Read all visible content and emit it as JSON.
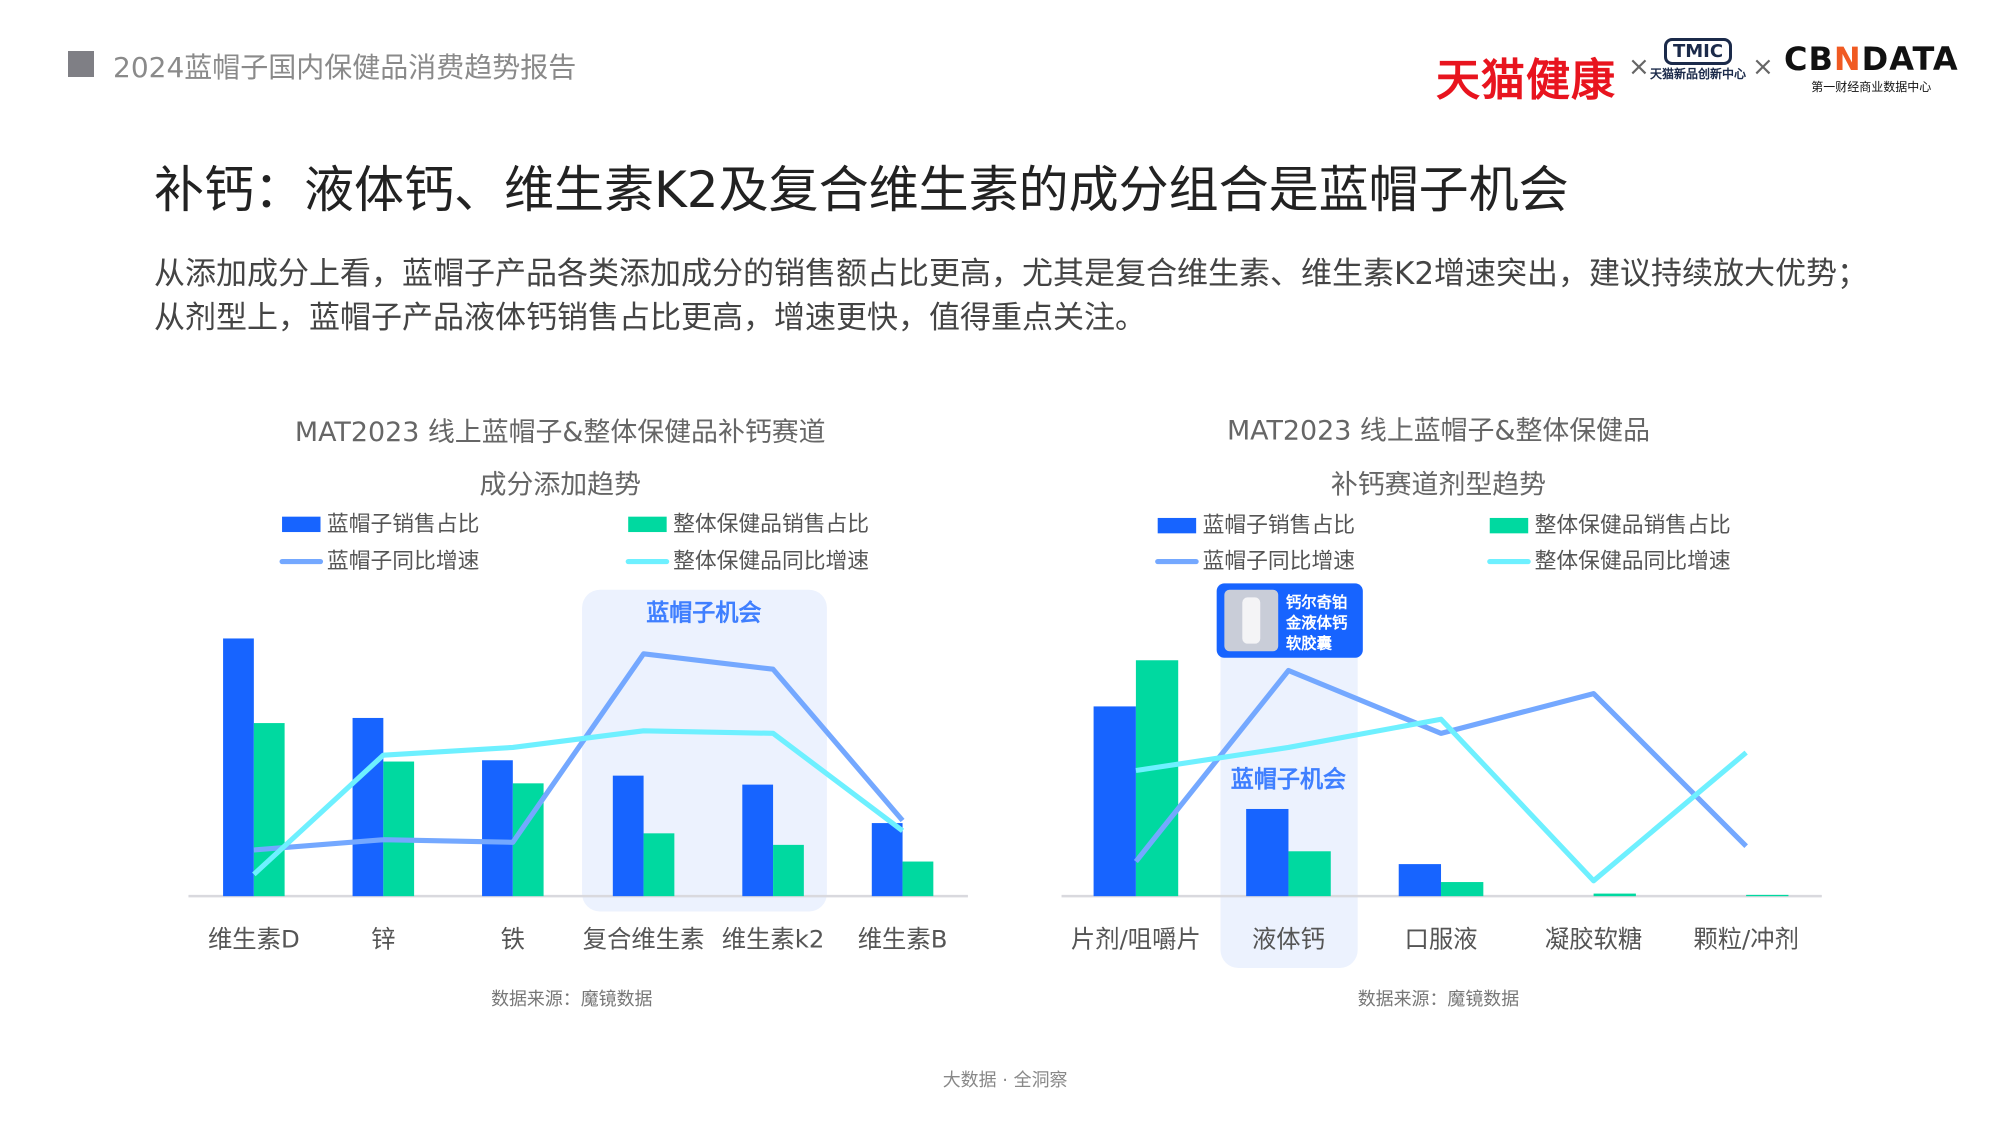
{
  "header": {
    "report_title": "2024蓝帽子国内保健品消费趋势报告"
  },
  "logos": {
    "tmall_health": "天猫健康",
    "cross": "×",
    "tmic": "TMIC",
    "tmic_sub": "天猫新品创新中心",
    "cbndata_a": "CB",
    "cbndata_n": "N",
    "cbndata_b": "DATA",
    "cbndata_sub": "第一财经商业数据中心"
  },
  "title": "补钙：液体钙、维生素K2及复合维生素的成分组合是蓝帽子机会",
  "description": "从添加成分上看，蓝帽子产品各类添加成分的销售额占比更高，尤其是复合维生素、维生素K2增速突出，建议持续放大优势；从剂型上，蓝帽子产品液体钙销售占比更高，增速更快，值得重点关注。",
  "footer": "大数据 · 全洞察",
  "colors": {
    "blue_bar": "#1764ff",
    "green_bar": "#00d9a0",
    "blue_line": "#74a8ff",
    "cyan_line": "#6ef0ff",
    "highlight": "#ecf2fe"
  },
  "chart_data": [
    {
      "type": "bar",
      "title_line1": "MAT2023 线上蓝帽子&整体保健品补钙赛道",
      "title_line2": "成分添加趋势",
      "categories": [
        "维生素D",
        "锌",
        "铁",
        "复合维生素",
        "维生素k2",
        "维生素B"
      ],
      "legend": [
        "蓝帽子销售占比",
        "整体保健品销售占比",
        "蓝帽子同比增速",
        "整体保健品同比增速"
      ],
      "series": [
        {
          "name": "蓝帽子销售占比",
          "kind": "bar",
          "values": [
            201,
            139,
            106,
            94,
            87,
            57
          ]
        },
        {
          "name": "整体保健品销售占比",
          "kind": "bar",
          "values": [
            135,
            105,
            88,
            49,
            40,
            27
          ]
        },
        {
          "name": "蓝帽子同比增速",
          "kind": "line",
          "values": [
            36,
            44,
            42,
            189,
            177,
            59
          ]
        },
        {
          "name": "整体保健品同比增速",
          "kind": "line",
          "values": [
            17,
            110,
            116,
            129,
            127,
            51
          ]
        }
      ],
      "units": "relative (no axis shown)",
      "highlight_label": "蓝帽子机会",
      "highlight_categories": [
        "复合维生素",
        "维生素k2"
      ],
      "source": "数据来源：魔镜数据"
    },
    {
      "type": "bar",
      "title_line1": "MAT2023 线上蓝帽子&整体保健品",
      "title_line2": "补钙赛道剂型趋势",
      "categories": [
        "片剂/咀嚼片",
        "液体钙",
        "口服液",
        "凝胶软糖",
        "颗粒/冲剂"
      ],
      "legend": [
        "蓝帽子销售占比",
        "整体保健品销售占比",
        "蓝帽子同比增速",
        "整体保健品同比增速"
      ],
      "series": [
        {
          "name": "蓝帽子销售占比",
          "kind": "bar",
          "values": [
            148,
            68,
            25,
            0,
            0
          ]
        },
        {
          "name": "整体保健品销售占比",
          "kind": "bar",
          "values": [
            184,
            35,
            11,
            2,
            1
          ]
        },
        {
          "name": "蓝帽子同比增速",
          "kind": "line",
          "values": [
            27,
            176,
            127,
            158,
            39
          ]
        },
        {
          "name": "整体保健品同比增速",
          "kind": "line",
          "values": [
            98,
            116,
            138,
            12,
            112
          ]
        }
      ],
      "units": "relative (no axis shown)",
      "highlight_label": "蓝帽子机会",
      "highlight_categories": [
        "液体钙"
      ],
      "product_callout": [
        "钙尔奇铂",
        "金液体钙",
        "软胶囊"
      ],
      "source": "数据来源：魔镜数据"
    }
  ]
}
